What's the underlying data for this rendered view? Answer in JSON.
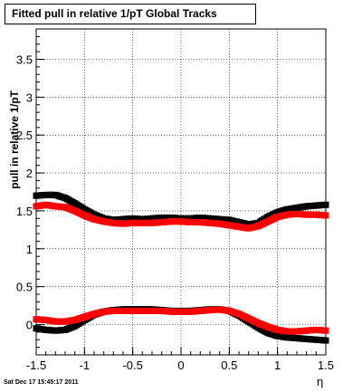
{
  "title": "Fitted pull in relative 1/pT  Global Tracks",
  "timestamp": "Sat Dec 17 15:45:17 2011",
  "chart_data": {
    "type": "scatter",
    "title": "Fitted pull in relative 1/pT  Global Tracks",
    "xlabel": "η",
    "ylabel": "pull in relative 1/pT",
    "xlim": [
      -1.5,
      1.5
    ],
    "ylim": [
      -0.4,
      3.9
    ],
    "grid": true,
    "x_ticks": [
      -1.5,
      -1,
      -0.5,
      0,
      0.5,
      1,
      1.5
    ],
    "x_tick_labels": [
      "-1.5",
      "-1",
      "-0.5",
      "0",
      "0.5",
      "1",
      "1.5"
    ],
    "y_ticks": [
      0,
      0.5,
      1,
      1.5,
      2,
      2.5,
      3,
      3.5
    ],
    "y_tick_labels": [
      "0",
      "0.5",
      "1",
      "1.5",
      "2",
      "2.5",
      "3",
      "3.5"
    ],
    "colors": {
      "series_black": "#000000",
      "series_red": "#ff0000"
    },
    "series": [
      {
        "color": "black",
        "x": [
          -1.5,
          -1.4,
          -1.3,
          -1.2,
          -1.1,
          -1.0,
          -0.9,
          -0.8,
          -0.7,
          -0.6,
          -0.5,
          -0.4,
          -0.3,
          -0.2,
          -0.1,
          0.0,
          0.1,
          0.2,
          0.3,
          0.4,
          0.5,
          0.6,
          0.7,
          0.8,
          0.9,
          1.0,
          1.1,
          1.2,
          1.3,
          1.4,
          1.5
        ],
        "y": [
          1.7,
          1.71,
          1.71,
          1.67,
          1.6,
          1.52,
          1.45,
          1.4,
          1.38,
          1.39,
          1.4,
          1.39,
          1.4,
          1.41,
          1.41,
          1.4,
          1.4,
          1.41,
          1.4,
          1.39,
          1.38,
          1.35,
          1.32,
          1.34,
          1.42,
          1.48,
          1.52,
          1.54,
          1.56,
          1.57,
          1.58
        ]
      },
      {
        "color": "red",
        "x": [
          -1.5,
          -1.4,
          -1.3,
          -1.2,
          -1.1,
          -1.0,
          -0.9,
          -0.8,
          -0.7,
          -0.6,
          -0.5,
          -0.4,
          -0.3,
          -0.2,
          -0.1,
          0.0,
          0.1,
          0.2,
          0.3,
          0.4,
          0.5,
          0.6,
          0.7,
          0.8,
          0.9,
          1.0,
          1.1,
          1.2,
          1.3,
          1.4,
          1.5
        ],
        "y": [
          1.56,
          1.58,
          1.56,
          1.55,
          1.5,
          1.44,
          1.39,
          1.36,
          1.34,
          1.33,
          1.34,
          1.34,
          1.34,
          1.35,
          1.36,
          1.36,
          1.35,
          1.35,
          1.34,
          1.33,
          1.31,
          1.29,
          1.27,
          1.3,
          1.36,
          1.42,
          1.45,
          1.46,
          1.45,
          1.45,
          1.44
        ]
      },
      {
        "color": "black",
        "x": [
          -1.5,
          -1.4,
          -1.3,
          -1.2,
          -1.1,
          -1.0,
          -0.9,
          -0.8,
          -0.7,
          -0.6,
          -0.5,
          -0.4,
          -0.3,
          -0.2,
          -0.1,
          0.0,
          0.1,
          0.2,
          0.3,
          0.4,
          0.5,
          0.6,
          0.7,
          0.8,
          0.9,
          1.0,
          1.1,
          1.2,
          1.3,
          1.4,
          1.5
        ],
        "y": [
          -0.05,
          -0.07,
          -0.08,
          -0.07,
          -0.02,
          0.06,
          0.13,
          0.17,
          0.19,
          0.2,
          0.2,
          0.2,
          0.2,
          0.19,
          0.18,
          0.18,
          0.18,
          0.19,
          0.2,
          0.2,
          0.18,
          0.12,
          0.04,
          -0.04,
          -0.11,
          -0.15,
          -0.17,
          -0.18,
          -0.19,
          -0.2,
          -0.21
        ]
      },
      {
        "color": "red",
        "x": [
          -1.5,
          -1.4,
          -1.3,
          -1.2,
          -1.1,
          -1.0,
          -0.9,
          -0.8,
          -0.7,
          -0.6,
          -0.5,
          -0.4,
          -0.3,
          -0.2,
          -0.1,
          0.0,
          0.1,
          0.2,
          0.3,
          0.4,
          0.5,
          0.6,
          0.7,
          0.8,
          0.9,
          1.0,
          1.1,
          1.2,
          1.3,
          1.4,
          1.5
        ],
        "y": [
          0.07,
          0.06,
          0.04,
          0.04,
          0.06,
          0.1,
          0.14,
          0.17,
          0.18,
          0.18,
          0.18,
          0.18,
          0.18,
          0.18,
          0.17,
          0.17,
          0.17,
          0.18,
          0.19,
          0.2,
          0.18,
          0.14,
          0.08,
          0.02,
          -0.03,
          -0.07,
          -0.09,
          -0.09,
          -0.08,
          -0.07,
          -0.08
        ]
      }
    ]
  }
}
